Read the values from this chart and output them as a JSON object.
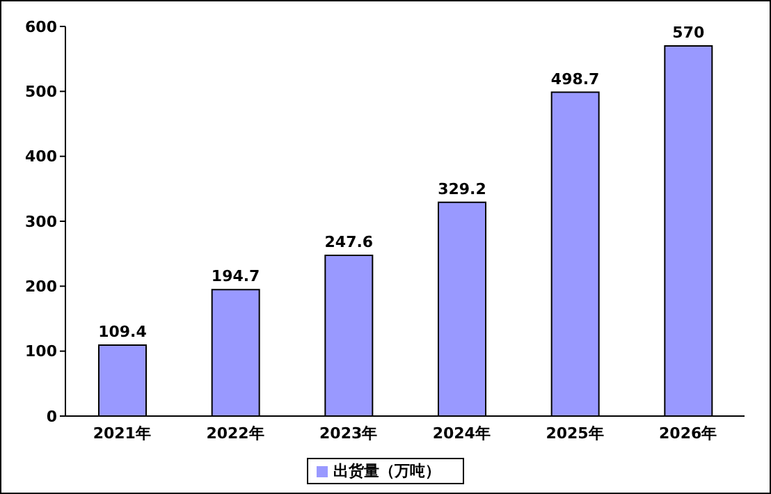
{
  "chart_data": {
    "type": "bar",
    "categories": [
      "2021年",
      "2022年",
      "2023年",
      "2024年",
      "2025年",
      "2026年"
    ],
    "series": [
      {
        "name": "出货量（万吨）",
        "color": "#9999ff",
        "values": [
          109.4,
          194.7,
          247.6,
          329.2,
          498.7,
          570
        ]
      }
    ],
    "ylim": [
      0,
      600
    ],
    "yticks": [
      0,
      100,
      200,
      300,
      400,
      500,
      600
    ],
    "grid": false,
    "legend": "bottom",
    "data_labels": true
  }
}
